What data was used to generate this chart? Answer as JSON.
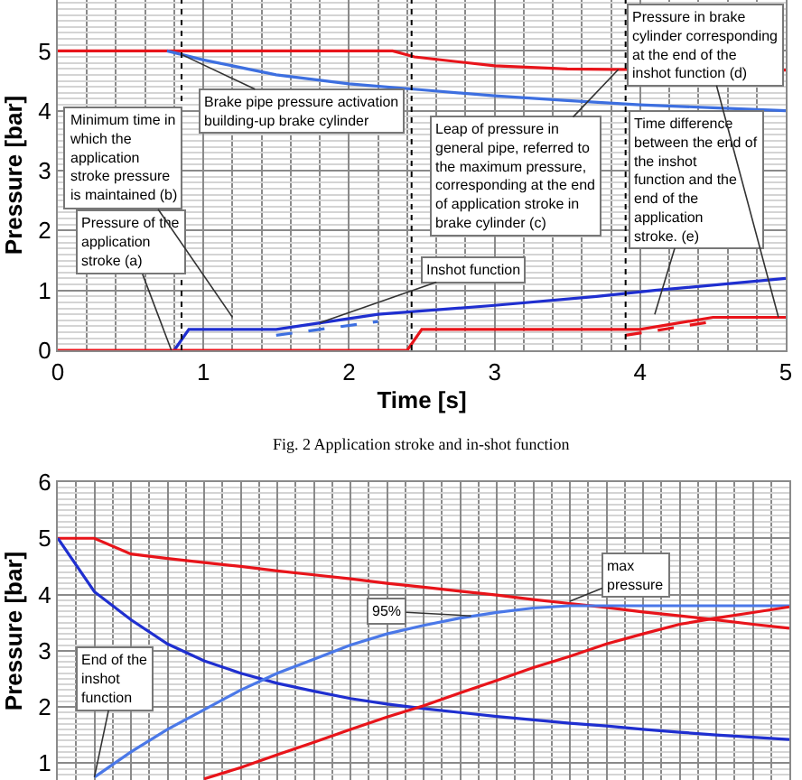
{
  "chart_data": [
    {
      "type": "line",
      "xlabel": "Time [s]",
      "ylabel": "Pressure [bar]",
      "xlim": [
        0,
        5
      ],
      "xticks": [
        0,
        1,
        2,
        3,
        4,
        5
      ],
      "ylim": [
        0,
        5.85
      ],
      "yticks": [
        0,
        1,
        2,
        3,
        4,
        5
      ],
      "grid": true,
      "marker": "none",
      "line_style": "solid",
      "series": [
        {
          "color": "#e8141a",
          "x": [
            0,
            2.3,
            2.45,
            3,
            3.5,
            3.8,
            5
          ],
          "values": [
            5,
            5,
            4.9,
            4.75,
            4.7,
            4.69,
            4.68
          ]
        },
        {
          "color": "#3d6fe0",
          "x": [
            0.75,
            1,
            1.5,
            2,
            2.5,
            3,
            3.5,
            4,
            4.5,
            5
          ],
          "values": [
            5,
            4.85,
            4.6,
            4.45,
            4.35,
            4.25,
            4.17,
            4.1,
            4.05,
            4.0
          ]
        },
        {
          "color": "#1f2fd0",
          "x": [
            0.8,
            0.9,
            1.5,
            2.2,
            3,
            3.7,
            4.1,
            5
          ],
          "values": [
            0,
            0.35,
            0.35,
            0.6,
            0.75,
            0.9,
            1.0,
            1.2
          ]
        },
        {
          "color": "#3d6fe0",
          "line_style": "dashed",
          "x": [
            1.5,
            2.2
          ],
          "values": [
            0.25,
            0.48
          ]
        },
        {
          "color": "#e8141a",
          "x": [
            0,
            2.4,
            2.5,
            4,
            4.5,
            5
          ],
          "values": [
            0,
            0,
            0.35,
            0.35,
            0.55,
            0.55
          ]
        },
        {
          "color": "#e8141a",
          "line_style": "dashed",
          "x": [
            3.9,
            4.5
          ],
          "values": [
            0.25,
            0.48
          ]
        }
      ],
      "ref_lines": [
        {
          "axis": "x",
          "value": 0.85,
          "color": "#000000",
          "line_style": "dotted"
        },
        {
          "axis": "x",
          "value": 2.43,
          "color": "#000000",
          "line_style": "dotted"
        },
        {
          "axis": "x",
          "value": 3.9,
          "color": "#000000",
          "line_style": "dotted"
        }
      ],
      "annotations": [
        {
          "text": "Pressure of the application stroke (a)",
          "x": 0.78,
          "y": 0
        },
        "Minimum time in which the application stroke pressure is maintained (b)",
        {
          "text": "Brake pipe pressure activation building-up brake cylinder",
          "x": 0.85,
          "y": 4.94
        },
        {
          "text": "Leap of pressure in general pipe, referred to the maximum pressure, corresponding at the end of application stroke in brake cylinder (c)",
          "x": 3.85,
          "y": 4.69
        },
        {
          "text": "Inshot function",
          "x": 1.8,
          "y": 0.46
        },
        "Time difference between the end of the inshot function and the end of the application stroke. (e)",
        {
          "text": "Pressure in brake cylinder corresponding at the end of the inshot function (d)",
          "x": 4.95,
          "y": 0.55
        },
        "Fig. 2 Application stroke and in-shot function"
      ]
    },
    {
      "type": "line",
      "ylabel": "Pressure [bar]",
      "categories": [
        null,
        null,
        null,
        null,
        null,
        null,
        null,
        null,
        null,
        null,
        null,
        null,
        null,
        null,
        null,
        null,
        null,
        null,
        null,
        null,
        null
      ],
      "ylim": [
        0.7,
        6
      ],
      "yticks": [
        1,
        2,
        3,
        4,
        5,
        6
      ],
      "grid": true,
      "marker": "none",
      "line_style": "solid",
      "tick_labels": "y",
      "series": [
        {
          "color": "#e8141a",
          "values": [
            5,
            5,
            4.72,
            4.64,
            4.57,
            4.5,
            4.42,
            4.35,
            4.28,
            4.2,
            4.13,
            4.06,
            3.99,
            3.91,
            3.84,
            3.77,
            3.69,
            3.62,
            3.55,
            3.47,
            3.4
          ]
        },
        {
          "color": "#1f2fd0",
          "values": [
            5,
            4.05,
            3.55,
            3.12,
            2.82,
            2.6,
            2.42,
            2.28,
            2.15,
            2.05,
            1.97,
            1.9,
            1.83,
            1.77,
            1.71,
            1.66,
            1.6,
            1.55,
            1.5,
            1.46,
            1.42
          ]
        },
        {
          "color": "#4a78e8",
          "values": [
            null,
            0.75,
            1.2,
            1.6,
            1.95,
            2.3,
            2.6,
            2.85,
            3.1,
            3.3,
            3.45,
            3.58,
            3.68,
            3.76,
            3.8,
            3.8,
            3.8,
            3.8,
            3.8,
            3.8,
            3.8
          ]
        },
        {
          "color": "#e8141a",
          "values": [
            null,
            null,
            null,
            null,
            0.72,
            0.92,
            1.15,
            1.37,
            1.6,
            1.82,
            2.02,
            2.25,
            2.47,
            2.7,
            2.9,
            3.12,
            3.3,
            3.47,
            3.58,
            3.68,
            3.78
          ]
        }
      ],
      "annotations": [
        "95%",
        "max pressure",
        "End of the inshot function"
      ]
    }
  ]
}
